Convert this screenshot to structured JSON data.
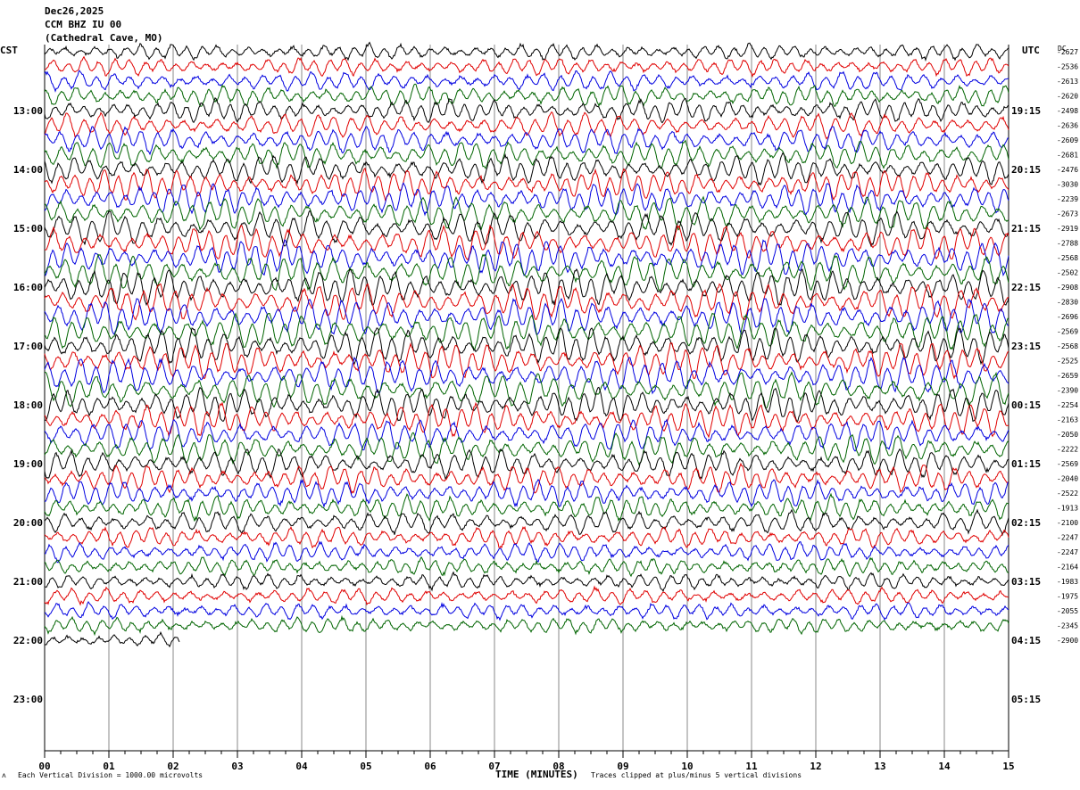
{
  "header": {
    "date": "Dec26,2025",
    "station": "CCM BHZ IU 00",
    "location": "(Cathedral Cave, MO)"
  },
  "labels": {
    "left_zone": "CST",
    "right_zone": "UTC",
    "dc_header": "DC",
    "footer_left": "Each Vertical Division = 1000.00 microvolts",
    "xlabel": "TIME (MINUTES)",
    "footer_right": "Traces clipped at plus/minus 5 vertical divisions"
  },
  "colors": {
    "trace_cycle": [
      "#000000",
      "#e00000",
      "#0000e0",
      "#006400"
    ],
    "grid": "#888888"
  },
  "chart_data": {
    "type": "line",
    "xlim": [
      0,
      15
    ],
    "x_ticks": [
      "00",
      "01",
      "02",
      "03",
      "04",
      "05",
      "06",
      "07",
      "08",
      "09",
      "10",
      "11",
      "12",
      "13",
      "14",
      "15"
    ],
    "left_hour_labels": [
      "13:00",
      "14:00",
      "15:00",
      "16:00",
      "17:00",
      "18:00",
      "19:00",
      "20:00",
      "21:00",
      "22:00",
      "23:00"
    ],
    "right_hour_labels": [
      "19:15",
      "20:15",
      "21:15",
      "22:15",
      "23:15",
      "00:15",
      "01:15",
      "02:15",
      "03:15",
      "04:15",
      "05:15"
    ],
    "trace_rows": 41,
    "last_trace_end_minute": 2.1,
    "dc_offsets": [
      "-2627",
      "-2536",
      "-2613",
      "-2620",
      "-2498",
      "-2636",
      "-2609",
      "-2681",
      "-2476",
      "-3030",
      "-2239",
      "-2673",
      "-2919",
      "-2788",
      "-2568",
      "-2502",
      "-2908",
      "-2830",
      "-2696",
      "-2569",
      "-2568",
      "-2525",
      "-2659",
      "-2390",
      "-2254",
      "-2163",
      "-2050",
      "-2222",
      "-2569",
      "-2040",
      "-2522",
      "-1913",
      "-2100",
      "-2247",
      "-2247",
      "-2164",
      "-1983",
      "-1975",
      "-2055",
      "-2345",
      "-2900"
    ]
  }
}
